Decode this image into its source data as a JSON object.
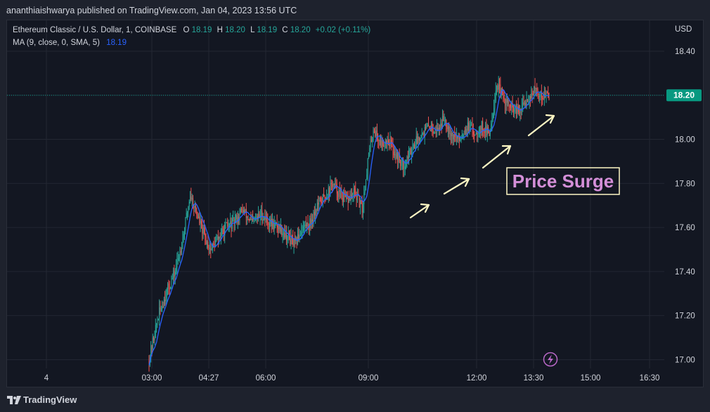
{
  "header": {
    "publish_note": "ananthiaishwarya published on TradingView.com, Jan 04, 2023 13:56 UTC"
  },
  "legend": {
    "symbol": "Ethereum Classic / U.S. Dollar, 1, COINBASE",
    "o_label": "O",
    "o_value": "18.19",
    "h_label": "H",
    "h_value": "18.20",
    "l_label": "L",
    "l_value": "18.19",
    "c_label": "C",
    "c_value": "18.20",
    "change": "+0.02 (+0.11%)",
    "ma_label": "MA (9, close, 0, SMA, 5)",
    "ma_value": "18.19"
  },
  "annotation": {
    "text": "Price Surge"
  },
  "footer": {
    "brand": "TradingView"
  },
  "colors": {
    "background": "#131722",
    "grid": "#232733",
    "up": "#26a69a",
    "down": "#ef5350",
    "ma": "#2962ff",
    "price_tag": "#089981",
    "annotation_text": "#d48fd8",
    "annotation_border": "#fff8c4",
    "arrow": "#fff8c4"
  },
  "chart_data": {
    "type": "candlestick",
    "title": "",
    "currency": "USD",
    "last_price": "18.20",
    "y_ticks": [
      "18.40",
      "18.20",
      "18.00",
      "17.80",
      "17.60",
      "17.40",
      "17.20",
      "17.00"
    ],
    "x_ticks": [
      "4",
      "03:00",
      "04:27",
      "06:00",
      "09:00",
      "12:00",
      "13:30",
      "15:00",
      "16:30"
    ],
    "ylim": [
      16.96,
      18.54
    ],
    "grid": true,
    "price_path": [
      [
        0,
        17.0
      ],
      [
        5,
        17.2
      ],
      [
        9,
        17.3
      ],
      [
        14,
        17.4
      ],
      [
        18,
        17.55
      ],
      [
        22,
        17.75
      ],
      [
        26,
        17.65
      ],
      [
        30,
        17.55
      ],
      [
        33,
        17.5
      ],
      [
        37,
        17.55
      ],
      [
        41,
        17.6
      ],
      [
        45,
        17.62
      ],
      [
        50,
        17.68
      ],
      [
        55,
        17.62
      ],
      [
        60,
        17.66
      ],
      [
        65,
        17.62
      ],
      [
        70,
        17.6
      ],
      [
        75,
        17.55
      ],
      [
        78,
        17.52
      ],
      [
        82,
        17.6
      ],
      [
        86,
        17.62
      ],
      [
        90,
        17.7
      ],
      [
        95,
        17.75
      ],
      [
        98,
        17.8
      ],
      [
        102,
        17.75
      ],
      [
        106,
        17.72
      ],
      [
        110,
        17.76
      ],
      [
        114,
        17.68
      ],
      [
        117,
        17.9
      ],
      [
        120,
        18.05
      ],
      [
        124,
        17.98
      ],
      [
        128,
        18.0
      ],
      [
        132,
        17.93
      ],
      [
        136,
        17.88
      ],
      [
        140,
        17.95
      ],
      [
        145,
        18.02
      ],
      [
        150,
        18.06
      ],
      [
        154,
        18.04
      ],
      [
        158,
        18.1
      ],
      [
        162,
        18.02
      ],
      [
        166,
        18.0
      ],
      [
        170,
        18.06
      ],
      [
        174,
        18.03
      ],
      [
        178,
        18.06
      ],
      [
        182,
        18.02
      ],
      [
        186,
        18.25
      ],
      [
        190,
        18.18
      ],
      [
        194,
        18.14
      ],
      [
        198,
        18.12
      ],
      [
        202,
        18.18
      ],
      [
        206,
        18.22
      ],
      [
        210,
        18.2
      ],
      [
        214,
        18.2
      ]
    ]
  }
}
